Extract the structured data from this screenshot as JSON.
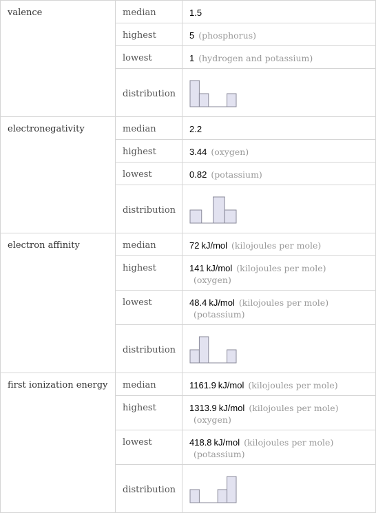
{
  "sections": [
    {
      "name": "valence",
      "rows": [
        {
          "label": "median",
          "value": "1.5"
        },
        {
          "label": "highest",
          "value": "5",
          "notes": [
            "(phosphorus)"
          ]
        },
        {
          "label": "lowest",
          "value": "1",
          "notes": [
            "(hydrogen and potassium)"
          ]
        }
      ],
      "distribution": {
        "label": "distribution",
        "counts": [
          2,
          1,
          0,
          0,
          1
        ]
      }
    },
    {
      "name": "electronegativity",
      "rows": [
        {
          "label": "median",
          "value": "2.2"
        },
        {
          "label": "highest",
          "value": "3.44",
          "notes": [
            "(oxygen)"
          ]
        },
        {
          "label": "lowest",
          "value": "0.82",
          "notes": [
            "(potassium)"
          ]
        }
      ],
      "distribution": {
        "label": "distribution",
        "counts": [
          1,
          0,
          2,
          1
        ]
      }
    },
    {
      "name": "electron affinity",
      "rows": [
        {
          "label": "median",
          "value": "72",
          "unit": "kJ/mol",
          "notes": [
            "(kilojoules per mole)"
          ]
        },
        {
          "label": "highest",
          "value": "141",
          "unit": "kJ/mol",
          "notes": [
            "(kilojoules per mole)",
            "(oxygen)"
          ]
        },
        {
          "label": "lowest",
          "value": "48.4",
          "unit": "kJ/mol",
          "notes": [
            "(kilojoules per mole)",
            "(potassium)"
          ]
        }
      ],
      "distribution": {
        "label": "distribution",
        "counts": [
          1,
          2,
          0,
          0,
          1
        ]
      }
    },
    {
      "name": "first ionization energy",
      "rows": [
        {
          "label": "median",
          "value": "1161.9",
          "unit": "kJ/mol",
          "notes": [
            "(kilojoules per mole)"
          ]
        },
        {
          "label": "highest",
          "value": "1313.9",
          "unit": "kJ/mol",
          "notes": [
            "(kilojoules per mole)",
            "(oxygen)"
          ]
        },
        {
          "label": "lowest",
          "value": "418.8",
          "unit": "kJ/mol",
          "notes": [
            "(kilojoules per mole)",
            "(potassium)"
          ]
        }
      ],
      "distribution": {
        "label": "distribution",
        "counts": [
          1,
          0,
          0,
          1,
          2
        ]
      }
    }
  ]
}
